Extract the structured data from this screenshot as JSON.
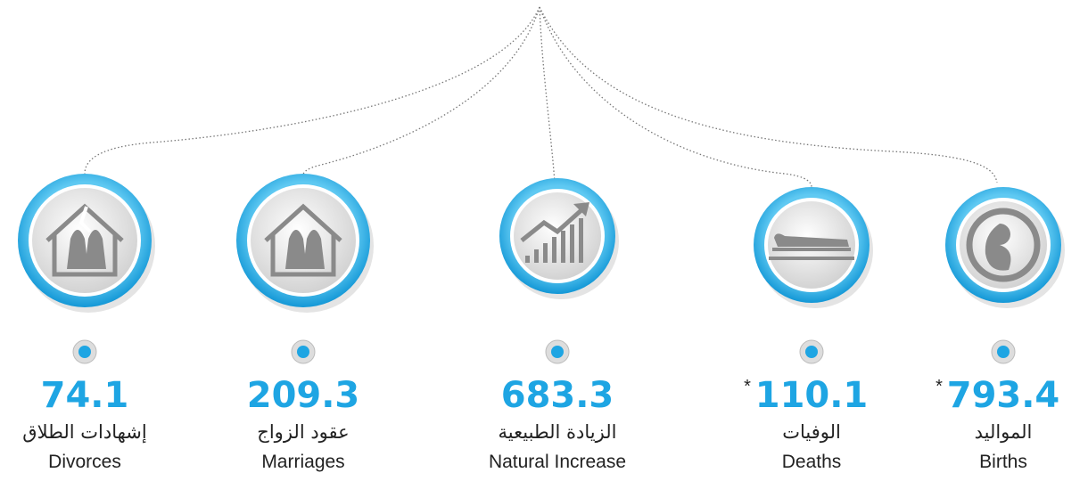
{
  "items": [
    {
      "value": "74.1",
      "label_ar": "إشهادات الطلاق",
      "label_en": "Divorces"
    },
    {
      "value": "209.3",
      "label_ar": "عقود الزواج",
      "label_en": "Marriages"
    },
    {
      "value": "683.3",
      "label_ar": "الزيادة الطبيعية",
      "label_en": "Natural Increase"
    },
    {
      "value": "110.1",
      "note": "*",
      "label_ar": "الوفيات",
      "label_en": "Deaths"
    },
    {
      "value": "793.4",
      "note": "*",
      "label_ar": "المواليد",
      "label_en": "Births"
    }
  ]
}
